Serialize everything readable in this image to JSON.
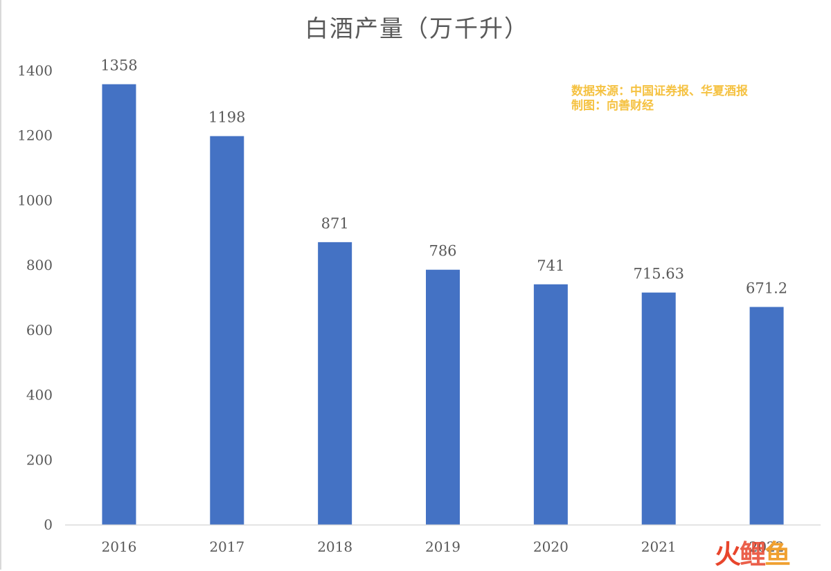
{
  "chart_data": {
    "type": "bar",
    "title": "白酒产量（万千升）",
    "categories": [
      "2016",
      "2017",
      "2018",
      "2019",
      "2020",
      "2021",
      "2022"
    ],
    "values": [
      1358,
      1198,
      871,
      786,
      741,
      715.63,
      671.2
    ],
    "value_labels": [
      "1358",
      "1198",
      "871",
      "786",
      "741",
      "715.63",
      "671.2"
    ],
    "ylim": [
      0,
      1400
    ],
    "yticks": [
      0,
      200,
      400,
      600,
      800,
      1000,
      1200,
      1400
    ],
    "grid": false,
    "bar_color": "#4472c4",
    "xlabel": "",
    "ylabel": ""
  },
  "annotation": {
    "source_line": "数据来源：中国证券报、华夏酒报",
    "author_line": "制图：向善财经",
    "color": "#f5c242"
  },
  "watermark": {
    "chars": [
      "火",
      "鲤",
      "鱼"
    ]
  }
}
